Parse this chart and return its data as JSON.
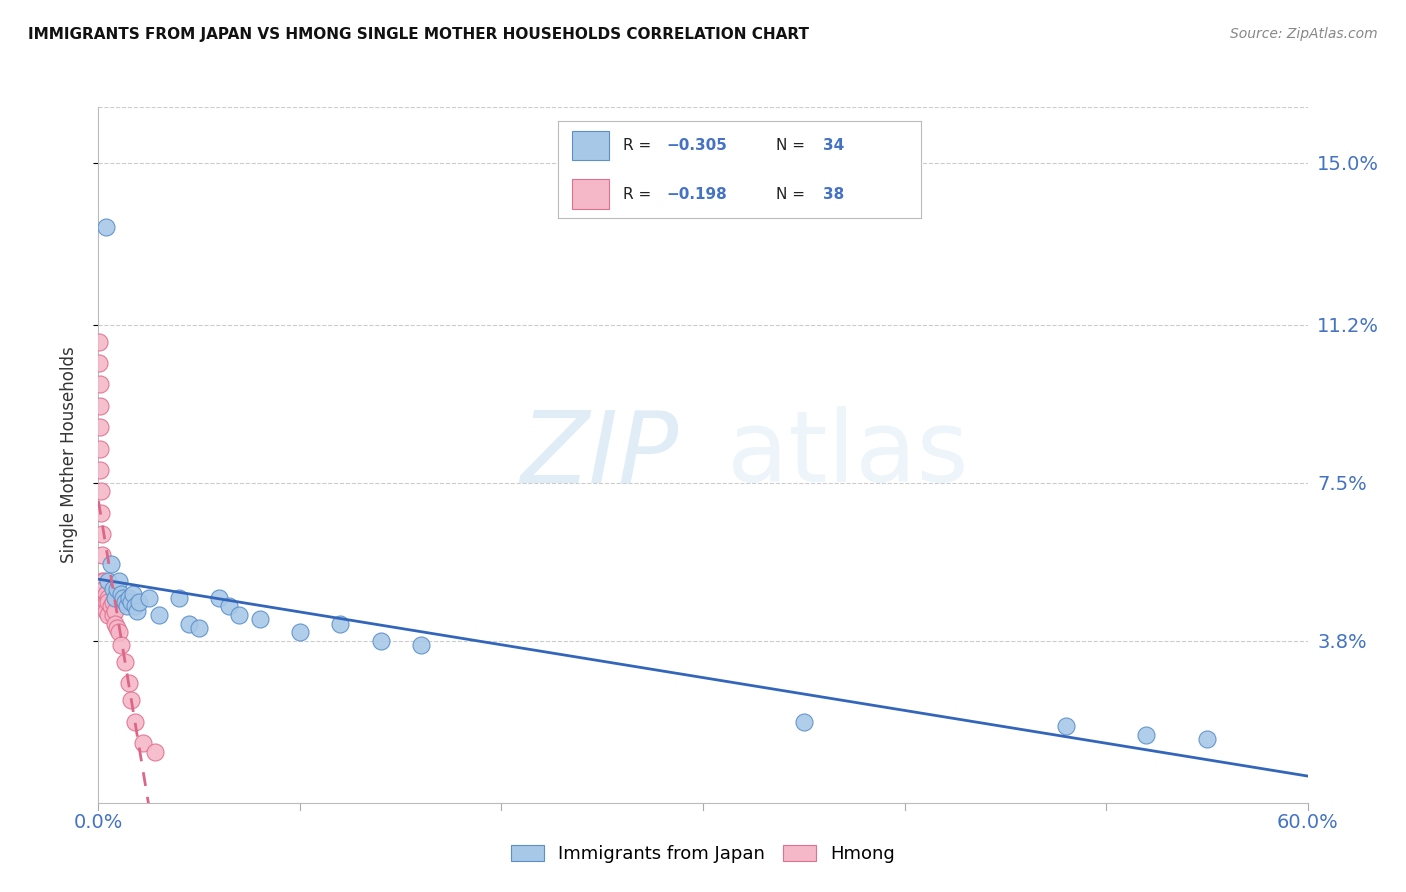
{
  "title": "IMMIGRANTS FROM JAPAN VS HMONG SINGLE MOTHER HOUSEHOLDS CORRELATION CHART",
  "source": "Source: ZipAtlas.com",
  "ylabel": "Single Mother Households",
  "watermark_zip": "ZIP",
  "watermark_atlas": "atlas",
  "legend_japan": "Immigrants from Japan",
  "legend_hmong": "Hmong",
  "legend_r_japan": "R = −0.305",
  "legend_n_japan": "N = 34",
  "legend_r_hmong": "R = −0.198",
  "legend_n_hmong": "N = 38",
  "color_japan_fill": "#a8c8e8",
  "color_japan_edge": "#5b8fc9",
  "color_hmong_fill": "#f4b8c8",
  "color_hmong_edge": "#e07090",
  "color_line_japan": "#3366bb",
  "color_line_hmong": "#dd6688",
  "color_axis_labels": "#4472c4",
  "color_grid": "#cccccc",
  "ytick_labels": [
    "15.0%",
    "11.2%",
    "7.5%",
    "3.8%"
  ],
  "ytick_values": [
    0.15,
    0.112,
    0.075,
    0.038
  ],
  "xlim": [
    0.0,
    0.6
  ],
  "ylim": [
    0.0,
    0.163
  ],
  "japan_x": [
    0.004,
    0.005,
    0.006,
    0.007,
    0.008,
    0.009,
    0.01,
    0.011,
    0.012,
    0.013,
    0.014,
    0.015,
    0.016,
    0.017,
    0.018,
    0.019,
    0.02,
    0.025,
    0.03,
    0.04,
    0.045,
    0.05,
    0.06,
    0.065,
    0.07,
    0.08,
    0.1,
    0.12,
    0.14,
    0.16,
    0.35,
    0.48,
    0.52,
    0.55
  ],
  "japan_y": [
    0.135,
    0.052,
    0.056,
    0.05,
    0.048,
    0.05,
    0.052,
    0.049,
    0.048,
    0.047,
    0.046,
    0.048,
    0.047,
    0.049,
    0.046,
    0.045,
    0.047,
    0.048,
    0.044,
    0.048,
    0.042,
    0.041,
    0.048,
    0.046,
    0.044,
    0.043,
    0.04,
    0.042,
    0.038,
    0.037,
    0.019,
    0.018,
    0.016,
    0.015
  ],
  "hmong_x": [
    0.0005,
    0.0005,
    0.001,
    0.001,
    0.001,
    0.001,
    0.001,
    0.0015,
    0.0015,
    0.002,
    0.002,
    0.002,
    0.0025,
    0.0025,
    0.003,
    0.003,
    0.003,
    0.003,
    0.004,
    0.004,
    0.004,
    0.005,
    0.005,
    0.005,
    0.006,
    0.007,
    0.007,
    0.008,
    0.008,
    0.009,
    0.01,
    0.011,
    0.013,
    0.015,
    0.016,
    0.018,
    0.022,
    0.028
  ],
  "hmong_y": [
    0.108,
    0.103,
    0.098,
    0.093,
    0.088,
    0.083,
    0.078,
    0.073,
    0.068,
    0.063,
    0.058,
    0.052,
    0.05,
    0.048,
    0.052,
    0.05,
    0.048,
    0.046,
    0.049,
    0.047,
    0.045,
    0.048,
    0.047,
    0.044,
    0.046,
    0.047,
    0.044,
    0.045,
    0.042,
    0.041,
    0.04,
    0.037,
    0.033,
    0.028,
    0.024,
    0.019,
    0.014,
    0.012
  ]
}
